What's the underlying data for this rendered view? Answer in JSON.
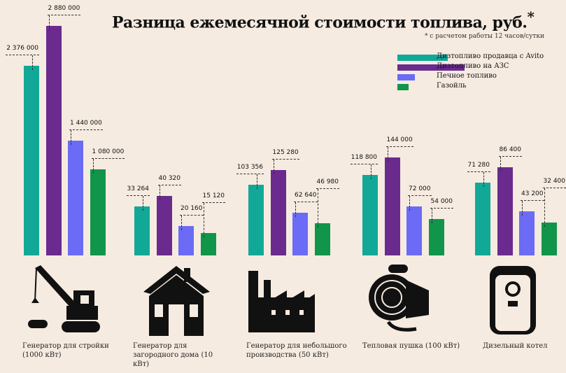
{
  "title": "Разница ежемесячной стоимости топлива, руб.",
  "title_mark": "*",
  "note": "* с расчетом работы 12 часов/сутки",
  "chart_data": {
    "type": "bar",
    "title": "Разница ежемесячной стоимости топлива, руб.",
    "categories": [
      "Генератор для стройки (1000 кВт)",
      "Генератор для загородного дома (10 кВт)",
      "Генератор для небольшого производства (50 кВт)",
      "Тепловая пушка (100 кВт)",
      "Дизельный котел"
    ],
    "series": [
      {
        "name": "Дизтопливо продавца с Avito",
        "color": "#12a898",
        "values": [
          2376000,
          33264,
          103356,
          118800,
          71280
        ],
        "labels": [
          "2 376 000",
          "33 264",
          "103 356",
          "118 800",
          "71 280"
        ]
      },
      {
        "name": "Дизтопливо на АЗС",
        "color": "#6a2a8e",
        "values": [
          2880000,
          40320,
          125280,
          144000,
          86400
        ],
        "labels": [
          "2 880 000",
          "40 320",
          "125 280",
          "144 000",
          "86 400"
        ]
      },
      {
        "name": "Печное топливо",
        "color": "#6b6bf5",
        "values": [
          1440000,
          20160,
          62640,
          72000,
          43200
        ],
        "labels": [
          "1 440 000",
          "20 160",
          "62 640",
          "72 000",
          "43 200"
        ]
      },
      {
        "name": "Газойль",
        "color": "#10954a",
        "values": [
          1080000,
          15120,
          46980,
          54000,
          32400
        ],
        "labels": [
          "1 080 000",
          "15 120",
          "46 980",
          "54 000",
          "32 400"
        ]
      }
    ],
    "legend": "top-right",
    "icons": [
      "crane-icon",
      "house-icon",
      "factory-icon",
      "heat-gun-icon",
      "boiler-icon"
    ]
  }
}
